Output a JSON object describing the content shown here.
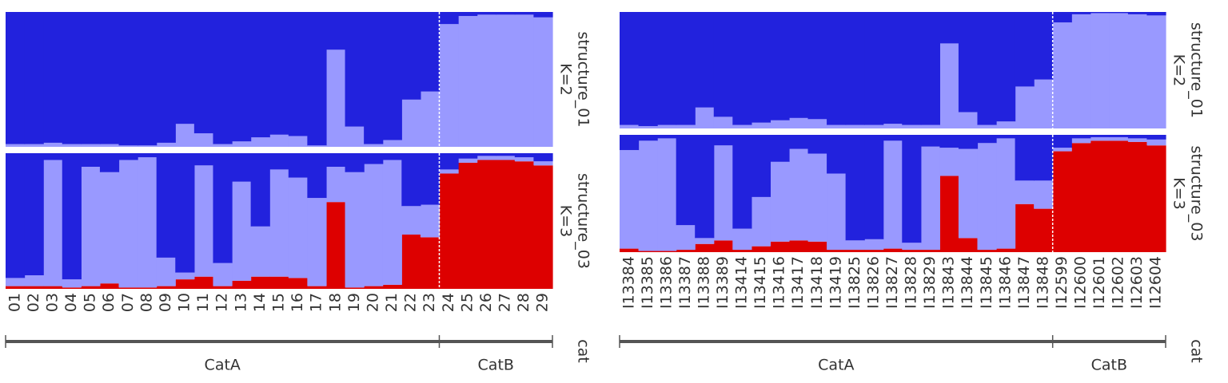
{
  "chart_data": [
    {
      "type": "bar",
      "stacked": true,
      "ylim": [
        0,
        1
      ],
      "categories": [
        "01",
        "02",
        "03",
        "04",
        "05",
        "06",
        "07",
        "08",
        "09",
        "10",
        "11",
        "12",
        "13",
        "14",
        "15",
        "16",
        "17",
        "18",
        "19",
        "20",
        "21",
        "22",
        "23",
        "24",
        "25",
        "26",
        "27",
        "28",
        "29"
      ],
      "groups": [
        {
          "label": "CatA",
          "count": 23
        },
        {
          "label": "CatB",
          "count": 6
        }
      ],
      "group_axis_label": "cat",
      "facets": [
        {
          "title": "structure_01",
          "subtitle": "K=2",
          "series": [
            {
              "color": "#9999ff",
              "values": [
                0.02,
                0.02,
                0.03,
                0.02,
                0.02,
                0.02,
                0.01,
                0.01,
                0.03,
                0.17,
                0.1,
                0.02,
                0.04,
                0.07,
                0.09,
                0.08,
                0.01,
                0.72,
                0.15,
                0.02,
                0.05,
                0.35,
                0.41,
                0.91,
                0.97,
                0.98,
                0.98,
                0.98,
                0.96
              ]
            },
            {
              "color": "#2222dd",
              "values": [
                0.98,
                0.98,
                0.97,
                0.98,
                0.98,
                0.98,
                0.99,
                0.99,
                0.97,
                0.83,
                0.9,
                0.98,
                0.96,
                0.93,
                0.91,
                0.92,
                0.99,
                0.28,
                0.85,
                0.98,
                0.95,
                0.65,
                0.59,
                0.09,
                0.03,
                0.02,
                0.02,
                0.02,
                0.04
              ]
            }
          ]
        },
        {
          "title": "structure_03",
          "subtitle": "K=3",
          "series": [
            {
              "color": "#dd0000",
              "values": [
                0.02,
                0.02,
                0.02,
                0.01,
                0.02,
                0.04,
                0.01,
                0.01,
                0.02,
                0.07,
                0.09,
                0.02,
                0.06,
                0.09,
                0.09,
                0.08,
                0.02,
                0.64,
                0.01,
                0.02,
                0.03,
                0.4,
                0.38,
                0.85,
                0.93,
                0.95,
                0.95,
                0.94,
                0.91
              ]
            },
            {
              "color": "#9999ff",
              "values": [
                0.06,
                0.08,
                0.93,
                0.06,
                0.88,
                0.82,
                0.94,
                0.96,
                0.21,
                0.05,
                0.82,
                0.17,
                0.73,
                0.37,
                0.79,
                0.74,
                0.65,
                0.26,
                0.85,
                0.9,
                0.92,
                0.21,
                0.24,
                0.03,
                0.03,
                0.03,
                0.03,
                0.03,
                0.03
              ]
            },
            {
              "color": "#2222dd",
              "values": [
                0.92,
                0.9,
                0.05,
                0.93,
                0.1,
                0.14,
                0.05,
                0.03,
                0.77,
                0.88,
                0.09,
                0.81,
                0.21,
                0.54,
                0.12,
                0.18,
                0.33,
                0.1,
                0.14,
                0.08,
                0.05,
                0.39,
                0.38,
                0.12,
                0.04,
                0.02,
                0.02,
                0.03,
                0.06
              ]
            }
          ]
        }
      ]
    },
    {
      "type": "bar",
      "stacked": true,
      "ylim": [
        0,
        1
      ],
      "categories": [
        "I13384",
        "I13385",
        "I13386",
        "I13387",
        "I13388",
        "I13389",
        "I13414",
        "I13415",
        "I13416",
        "I13417",
        "I13418",
        "I13419",
        "I13825",
        "I13826",
        "I13827",
        "I13828",
        "I13829",
        "I13843",
        "I13844",
        "I13845",
        "I13846",
        "I13847",
        "I13848",
        "I12599",
        "I12600",
        "I12601",
        "I12602",
        "I12603",
        "I12604"
      ],
      "groups": [
        {
          "label": "CatA",
          "count": 23
        },
        {
          "label": "CatB",
          "count": 6
        }
      ],
      "group_axis_label": "cat",
      "facets": [
        {
          "title": "structure_01",
          "subtitle": "K=2",
          "series": [
            {
              "color": "#9999ff",
              "values": [
                0.03,
                0.02,
                0.03,
                0.03,
                0.18,
                0.1,
                0.03,
                0.05,
                0.07,
                0.09,
                0.08,
                0.03,
                0.03,
                0.03,
                0.04,
                0.03,
                0.03,
                0.73,
                0.14,
                0.03,
                0.06,
                0.36,
                0.42,
                0.91,
                0.98,
                0.99,
                0.99,
                0.98,
                0.97
              ]
            },
            {
              "color": "#2222dd",
              "values": [
                0.97,
                0.98,
                0.97,
                0.97,
                0.82,
                0.9,
                0.97,
                0.95,
                0.93,
                0.91,
                0.92,
                0.97,
                0.97,
                0.97,
                0.96,
                0.97,
                0.97,
                0.27,
                0.86,
                0.97,
                0.94,
                0.64,
                0.58,
                0.09,
                0.02,
                0.01,
                0.01,
                0.02,
                0.03
              ]
            }
          ]
        },
        {
          "title": "structure_03",
          "subtitle": "K=3",
          "series": [
            {
              "color": "#dd0000",
              "values": [
                0.03,
                0.01,
                0.01,
                0.02,
                0.07,
                0.1,
                0.02,
                0.05,
                0.09,
                0.1,
                0.09,
                0.02,
                0.02,
                0.02,
                0.03,
                0.02,
                0.02,
                0.65,
                0.12,
                0.02,
                0.03,
                0.41,
                0.37,
                0.86,
                0.93,
                0.95,
                0.95,
                0.94,
                0.91
              ]
            },
            {
              "color": "#9999ff",
              "values": [
                0.84,
                0.94,
                0.96,
                0.21,
                0.05,
                0.81,
                0.18,
                0.42,
                0.68,
                0.78,
                0.75,
                0.65,
                0.08,
                0.09,
                0.92,
                0.06,
                0.88,
                0.24,
                0.76,
                0.91,
                0.94,
                0.2,
                0.24,
                0.03,
                0.04,
                0.03,
                0.03,
                0.03,
                0.05
              ]
            },
            {
              "color": "#2222dd",
              "values": [
                0.13,
                0.05,
                0.03,
                0.77,
                0.88,
                0.09,
                0.8,
                0.53,
                0.23,
                0.12,
                0.16,
                0.33,
                0.9,
                0.89,
                0.05,
                0.92,
                0.1,
                0.11,
                0.12,
                0.07,
                0.03,
                0.39,
                0.39,
                0.11,
                0.03,
                0.02,
                0.02,
                0.03,
                0.04
              ]
            }
          ]
        }
      ]
    }
  ]
}
